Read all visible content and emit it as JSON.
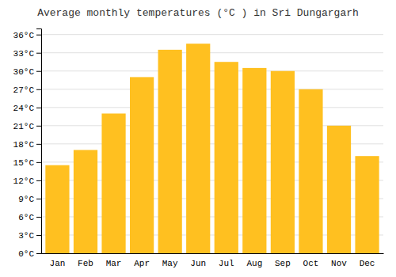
{
  "chart_data": {
    "type": "bar",
    "title": "Average monthly temperatures (°C ) in Sri Dungargarh",
    "categories": [
      "Jan",
      "Feb",
      "Mar",
      "Apr",
      "May",
      "Jun",
      "Jul",
      "Aug",
      "Sep",
      "Oct",
      "Nov",
      "Dec"
    ],
    "values": [
      14.5,
      17.0,
      23.0,
      29.0,
      33.5,
      34.5,
      31.5,
      30.5,
      30.0,
      27.0,
      21.0,
      16.0
    ],
    "color": "#FFC020",
    "ylim": [
      0,
      37
    ],
    "yticks": [
      {
        "value": 0,
        "label": "0°C"
      },
      {
        "value": 3,
        "label": "3°C"
      },
      {
        "value": 6,
        "label": "6°C"
      },
      {
        "value": 9,
        "label": "9°C"
      },
      {
        "value": 12,
        "label": "12°C"
      },
      {
        "value": 15,
        "label": "15°C"
      },
      {
        "value": 18,
        "label": "18°C"
      },
      {
        "value": 21,
        "label": "21°C"
      },
      {
        "value": 24,
        "label": "24°C"
      },
      {
        "value": 27,
        "label": "27°C"
      },
      {
        "value": 30,
        "label": "30°C"
      },
      {
        "value": 33,
        "label": "33°C"
      },
      {
        "value": 36,
        "label": "36°C"
      }
    ],
    "grid": true
  }
}
